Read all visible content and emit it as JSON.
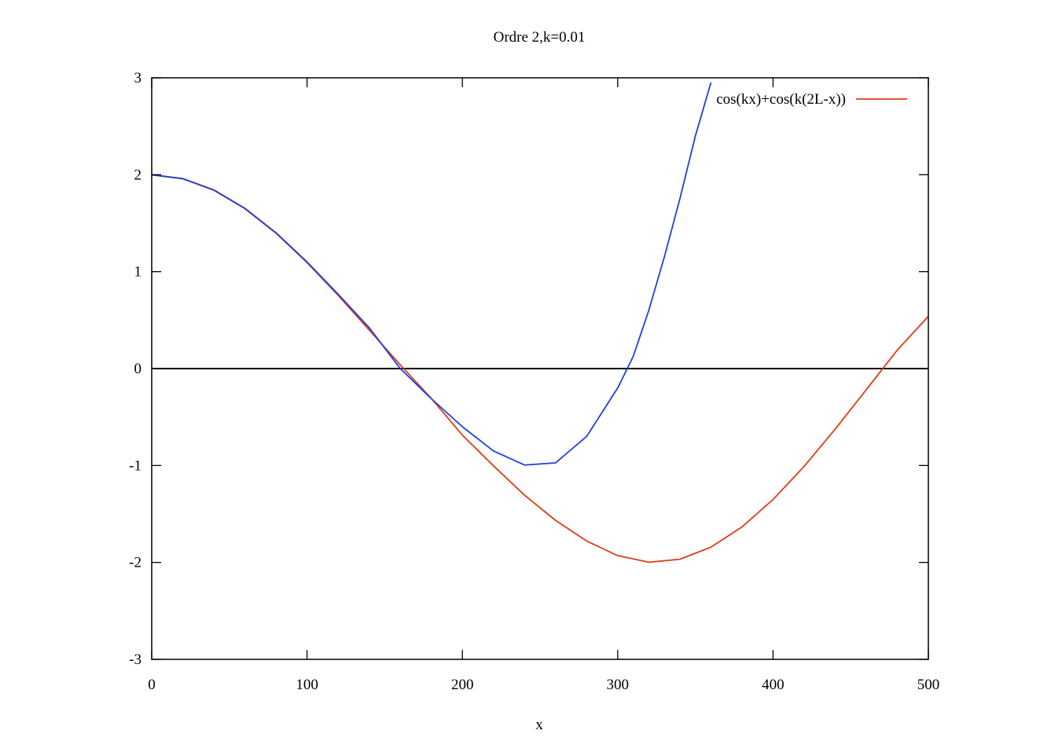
{
  "chart_data": {
    "type": "line",
    "title": "Ordre 2,k=0.01",
    "xlabel": "x",
    "ylabel": "",
    "xlim": [
      0,
      500
    ],
    "ylim": [
      -3,
      3
    ],
    "x_ticks": [
      0,
      100,
      200,
      300,
      400,
      500
    ],
    "y_ticks": [
      -3,
      -2,
      -1,
      0,
      1,
      2,
      3
    ],
    "grid": false,
    "legend_position": "top-right",
    "baseline": {
      "y": 0,
      "color": "#000000"
    },
    "series": [
      {
        "name": "cos(kx)+cos(k(2L-x))",
        "color": "#e03c14",
        "x": [
          0,
          20,
          40,
          60,
          80,
          100,
          120,
          140,
          160,
          180,
          200,
          220,
          240,
          260,
          280,
          300,
          320,
          340,
          360,
          380,
          400,
          420,
          440,
          460,
          480,
          500
        ],
        "y": [
          1.998,
          1.958,
          1.84,
          1.65,
          1.397,
          1.094,
          0.756,
          0.398,
          0.038,
          -0.308,
          -0.687,
          -1.003,
          -1.306,
          -1.567,
          -1.779,
          -1.93,
          -1.998,
          -1.967,
          -1.843,
          -1.634,
          -1.351,
          -1.009,
          -0.625,
          -0.218,
          0.191,
          0.539
        ]
      },
      {
        "name": "",
        "color": "#1f3fe0",
        "x": [
          0,
          20,
          40,
          60,
          80,
          100,
          120,
          140,
          160,
          180,
          200,
          220,
          240,
          260,
          280,
          300,
          310,
          320,
          330,
          340,
          350,
          360
        ],
        "y": [
          2.0,
          1.96,
          1.843,
          1.653,
          1.401,
          1.1,
          0.767,
          0.422,
          0.0,
          -0.311,
          -0.6,
          -0.85,
          -0.995,
          -0.973,
          -0.7,
          -0.2,
          0.126,
          0.6,
          1.15,
          1.75,
          2.4,
          2.95
        ]
      }
    ]
  }
}
